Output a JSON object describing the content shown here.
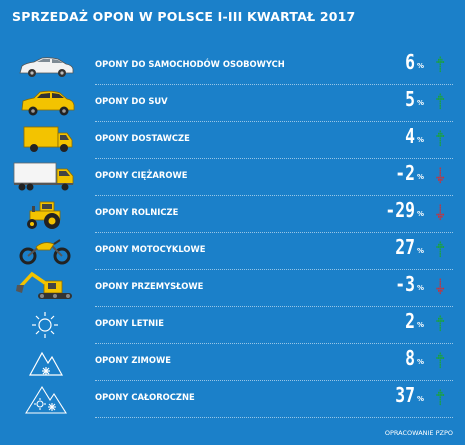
{
  "title": "SPRZEDAŻ OPON W POLSCE I-III KWARTAŁ 2017",
  "credit": "OPRACOWANIE PZPO",
  "colors": {
    "background": "#1b80c9",
    "up": "#1aa33a",
    "down": "#c8323a",
    "icon": "#f3c300"
  },
  "chart_data": {
    "type": "table",
    "title": "SPRZEDAŻ OPON W POLSCE I-III KWARTAŁ 2017",
    "unit": "%",
    "rows": [
      {
        "label": "OPONY DO SAMOCHODÓW OSOBOWYCH",
        "value": 6,
        "display": "6",
        "unit": "%",
        "trend": "up",
        "icon": "car-icon"
      },
      {
        "label": "OPONY DO SUV",
        "value": 5,
        "display": "5",
        "unit": "%",
        "trend": "up",
        "icon": "suv-icon"
      },
      {
        "label": "OPONY DOSTAWCZE",
        "value": 4,
        "display": "4",
        "unit": "%",
        "trend": "up",
        "icon": "van-icon"
      },
      {
        "label": "OPONY CIĘŻAROWE",
        "value": -2,
        "display": "-2",
        "unit": "%",
        "trend": "down",
        "icon": "truck-icon"
      },
      {
        "label": "OPONY ROLNICZE",
        "value": -29,
        "display": "-29",
        "unit": "%",
        "trend": "down",
        "icon": "tractor-icon"
      },
      {
        "label": "OPONY MOTOCYKLOWE",
        "value": 27,
        "display": "27",
        "unit": "%",
        "trend": "up",
        "icon": "motorcycle-icon"
      },
      {
        "label": "OPONY PRZEMYSŁOWE",
        "value": -3,
        "display": "-3",
        "unit": "%",
        "trend": "down",
        "icon": "excavator-icon"
      },
      {
        "label": "OPONY LETNIE",
        "value": 2,
        "display": "2",
        "unit": "%",
        "trend": "up",
        "icon": "sun-icon"
      },
      {
        "label": "OPONY ZIMOWE",
        "value": 8,
        "display": "8",
        "unit": "%",
        "trend": "up",
        "icon": "snow-mountain-icon"
      },
      {
        "label": "OPONY CAŁOROCZNE",
        "value": 37,
        "display": "37",
        "unit": "%",
        "trend": "up",
        "icon": "sun-snow-mountain-icon"
      }
    ]
  }
}
